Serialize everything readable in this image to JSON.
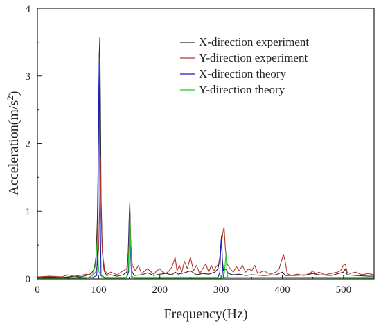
{
  "chart_data": {
    "type": "line",
    "xlabel": "Frequency(Hz)",
    "ylabel": "Acceleration(m/s",
    "ylabel_superscript": "2",
    "ylabel_suffix": ")",
    "xlim": [
      0,
      550
    ],
    "ylim": [
      0,
      4
    ],
    "x_ticks": [
      0,
      100,
      200,
      300,
      400,
      500
    ],
    "y_ticks": [
      0,
      1,
      2,
      3,
      4
    ],
    "grid": false,
    "legend_position": "top-right",
    "series": [
      {
        "name": "X-direction experiment",
        "color": "#2b2b2b",
        "points": [
          [
            0,
            0.02
          ],
          [
            20,
            0.03
          ],
          [
            40,
            0.02
          ],
          [
            60,
            0.04
          ],
          [
            70,
            0.03
          ],
          [
            80,
            0.05
          ],
          [
            88,
            0.08
          ],
          [
            93,
            0.15
          ],
          [
            96,
            0.35
          ],
          [
            98,
            0.9
          ],
          [
            100,
            2.2
          ],
          [
            101,
            3.3
          ],
          [
            102,
            3.57
          ],
          [
            103,
            2.6
          ],
          [
            104,
            1.2
          ],
          [
            106,
            0.4
          ],
          [
            109,
            0.12
          ],
          [
            113,
            0.05
          ],
          [
            120,
            0.06
          ],
          [
            130,
            0.04
          ],
          [
            140,
            0.06
          ],
          [
            146,
            0.1
          ],
          [
            148,
            0.3
          ],
          [
            150,
            0.9
          ],
          [
            151,
            1.14
          ],
          [
            152,
            0.7
          ],
          [
            154,
            0.12
          ],
          [
            158,
            0.05
          ],
          [
            170,
            0.06
          ],
          [
            180,
            0.09
          ],
          [
            190,
            0.05
          ],
          [
            200,
            0.07
          ],
          [
            210,
            0.08
          ],
          [
            220,
            0.06
          ],
          [
            225,
            0.1
          ],
          [
            230,
            0.07
          ],
          [
            240,
            0.09
          ],
          [
            250,
            0.12
          ],
          [
            260,
            0.06
          ],
          [
            270,
            0.08
          ],
          [
            280,
            0.07
          ],
          [
            290,
            0.1
          ],
          [
            295,
            0.15
          ],
          [
            298,
            0.3
          ],
          [
            300,
            0.55
          ],
          [
            301,
            0.62
          ],
          [
            302,
            0.3
          ],
          [
            304,
            0.12
          ],
          [
            308,
            0.15
          ],
          [
            312,
            0.08
          ],
          [
            320,
            0.06
          ],
          [
            330,
            0.07
          ],
          [
            340,
            0.05
          ],
          [
            350,
            0.06
          ],
          [
            370,
            0.05
          ],
          [
            390,
            0.06
          ],
          [
            400,
            0.1
          ],
          [
            405,
            0.05
          ],
          [
            420,
            0.05
          ],
          [
            440,
            0.06
          ],
          [
            450,
            0.08
          ],
          [
            460,
            0.06
          ],
          [
            480,
            0.05
          ],
          [
            500,
            0.1
          ],
          [
            503,
            0.15
          ],
          [
            506,
            0.06
          ],
          [
            520,
            0.05
          ],
          [
            540,
            0.04
          ],
          [
            550,
            0.04
          ]
        ]
      },
      {
        "name": "Y-direction experiment",
        "color": "#b03a2e",
        "points": [
          [
            0,
            0.03
          ],
          [
            20,
            0.04
          ],
          [
            40,
            0.03
          ],
          [
            50,
            0.06
          ],
          [
            60,
            0.04
          ],
          [
            70,
            0.05
          ],
          [
            80,
            0.07
          ],
          [
            90,
            0.05
          ],
          [
            95,
            0.1
          ],
          [
            98,
            0.2
          ],
          [
            100,
            0.45
          ],
          [
            102,
            1.2
          ],
          [
            103,
            1.82
          ],
          [
            104,
            1.0
          ],
          [
            106,
            0.4
          ],
          [
            110,
            0.12
          ],
          [
            115,
            0.07
          ],
          [
            120,
            0.1
          ],
          [
            130,
            0.06
          ],
          [
            140,
            0.12
          ],
          [
            146,
            0.15
          ],
          [
            149,
            0.5
          ],
          [
            151,
            0.98
          ],
          [
            152,
            0.6
          ],
          [
            155,
            0.2
          ],
          [
            160,
            0.12
          ],
          [
            165,
            0.2
          ],
          [
            170,
            0.08
          ],
          [
            180,
            0.15
          ],
          [
            190,
            0.07
          ],
          [
            195,
            0.12
          ],
          [
            200,
            0.15
          ],
          [
            205,
            0.1
          ],
          [
            210,
            0.08
          ],
          [
            215,
            0.12
          ],
          [
            220,
            0.18
          ],
          [
            225,
            0.32
          ],
          [
            228,
            0.12
          ],
          [
            232,
            0.2
          ],
          [
            236,
            0.1
          ],
          [
            240,
            0.26
          ],
          [
            245,
            0.15
          ],
          [
            250,
            0.32
          ],
          [
            255,
            0.12
          ],
          [
            260,
            0.2
          ],
          [
            265,
            0.08
          ],
          [
            270,
            0.15
          ],
          [
            275,
            0.22
          ],
          [
            280,
            0.1
          ],
          [
            284,
            0.2
          ],
          [
            288,
            0.12
          ],
          [
            292,
            0.18
          ],
          [
            296,
            0.22
          ],
          [
            300,
            0.45
          ],
          [
            303,
            0.68
          ],
          [
            305,
            0.77
          ],
          [
            307,
            0.45
          ],
          [
            310,
            0.22
          ],
          [
            315,
            0.15
          ],
          [
            320,
            0.1
          ],
          [
            325,
            0.18
          ],
          [
            330,
            0.12
          ],
          [
            335,
            0.2
          ],
          [
            340,
            0.1
          ],
          [
            345,
            0.15
          ],
          [
            350,
            0.12
          ],
          [
            355,
            0.2
          ],
          [
            360,
            0.08
          ],
          [
            370,
            0.12
          ],
          [
            380,
            0.07
          ],
          [
            390,
            0.1
          ],
          [
            395,
            0.15
          ],
          [
            398,
            0.25
          ],
          [
            402,
            0.36
          ],
          [
            405,
            0.25
          ],
          [
            408,
            0.08
          ],
          [
            415,
            0.05
          ],
          [
            425,
            0.07
          ],
          [
            435,
            0.05
          ],
          [
            445,
            0.08
          ],
          [
            450,
            0.12
          ],
          [
            455,
            0.08
          ],
          [
            460,
            0.1
          ],
          [
            470,
            0.06
          ],
          [
            480,
            0.08
          ],
          [
            490,
            0.1
          ],
          [
            495,
            0.12
          ],
          [
            500,
            0.2
          ],
          [
            503,
            0.22
          ],
          [
            506,
            0.1
          ],
          [
            510,
            0.08
          ],
          [
            520,
            0.1
          ],
          [
            530,
            0.06
          ],
          [
            540,
            0.08
          ],
          [
            550,
            0.06
          ]
        ]
      },
      {
        "name": "X-direction theory",
        "color": "#1c1cc8",
        "points": [
          [
            0,
            0.02
          ],
          [
            90,
            0.02
          ],
          [
            97,
            0.05
          ],
          [
            99,
            0.8
          ],
          [
            100,
            2.6
          ],
          [
            101,
            3.2
          ],
          [
            102,
            1.5
          ],
          [
            104,
            0.05
          ],
          [
            110,
            0.02
          ],
          [
            146,
            0.02
          ],
          [
            149,
            0.1
          ],
          [
            150,
            0.9
          ],
          [
            151,
            1.05
          ],
          [
            152,
            0.4
          ],
          [
            154,
            0.02
          ],
          [
            295,
            0.02
          ],
          [
            298,
            0.1
          ],
          [
            300,
            0.55
          ],
          [
            301,
            0.65
          ],
          [
            302,
            0.2
          ],
          [
            304,
            0.02
          ],
          [
            550,
            0.02
          ]
        ]
      },
      {
        "name": "Y-direction theory",
        "color": "#22cc22",
        "points": [
          [
            0,
            0.01
          ],
          [
            80,
            0.01
          ],
          [
            90,
            0.05
          ],
          [
            95,
            0.2
          ],
          [
            98,
            0.6
          ],
          [
            100,
            0.12
          ],
          [
            103,
            0.05
          ],
          [
            110,
            0.01
          ],
          [
            145,
            0.01
          ],
          [
            148,
            0.1
          ],
          [
            150,
            0.5
          ],
          [
            151,
            0.95
          ],
          [
            152,
            0.6
          ],
          [
            154,
            0.05
          ],
          [
            158,
            0.01
          ],
          [
            300,
            0.01
          ],
          [
            305,
            0.05
          ],
          [
            307,
            0.25
          ],
          [
            308,
            0.37
          ],
          [
            309,
            0.2
          ],
          [
            311,
            0.02
          ],
          [
            550,
            0.01
          ]
        ]
      }
    ]
  }
}
